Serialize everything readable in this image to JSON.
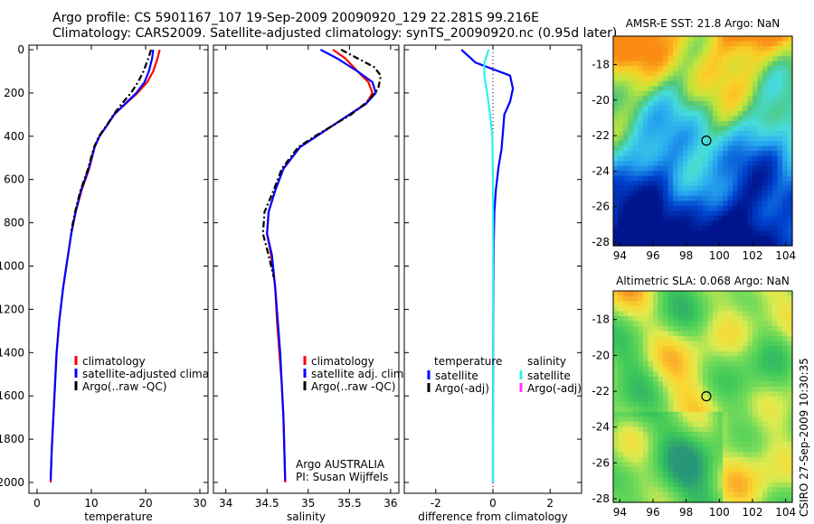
{
  "title": {
    "line1": "Argo profile: CS 5901167_107 19-Sep-2009 20090920_129 22.281S 99.216E",
    "line2": "Climatology: CARS2009. Satellite-adjusted climatology: synTS_20090920.nc (0.95d later)"
  },
  "side_label": "CSIRO 27-Sep-2009 10:30:35",
  "colors": {
    "climatology": "#ff0000",
    "satellite": "#0000ff",
    "argo": "#000000",
    "salinity_satellite": "#33eeee",
    "salinity_argo": "#ff33ff"
  },
  "chart_data": [
    {
      "type": "line",
      "name": "temperature-profile",
      "xlabel": "temperature",
      "xlim": [
        -1.5,
        31.5
      ],
      "ylim": [
        2000,
        0
      ],
      "yticks": [
        0,
        200,
        400,
        600,
        800,
        1000,
        1200,
        1400,
        1600,
        1800,
        2000
      ],
      "xticks": [
        0,
        10,
        20,
        30
      ],
      "legend": {
        "placement": "lower-right",
        "entries": [
          "climatology",
          "satellite-adjusted climatology",
          "Argo(..raw -QC)"
        ]
      },
      "series": [
        {
          "name": "climatology",
          "color": "#ff0000",
          "x": [
            22.6,
            22.2,
            21.4,
            20.3,
            18.5,
            16.3,
            14.2,
            12.9,
            11.5,
            10.6,
            9.6,
            8.2,
            7.1,
            6.3,
            5.7,
            4.8,
            4.1,
            3.6,
            3.3,
            3.0,
            2.7,
            2.5
          ],
          "y": [
            0,
            40,
            100,
            150,
            200,
            250,
            300,
            350,
            400,
            450,
            550,
            650,
            750,
            850,
            950,
            1100,
            1250,
            1400,
            1550,
            1700,
            1850,
            2000
          ]
        },
        {
          "name": "satellite-adjusted climatology",
          "color": "#0000ff",
          "x": [
            21.4,
            21.2,
            20.6,
            19.8,
            18.3,
            16.2,
            14.2,
            12.9,
            11.5,
            10.6,
            9.5,
            8.1,
            7.1,
            6.3,
            5.7,
            4.8,
            4.1,
            3.6,
            3.3,
            3.0,
            2.7,
            2.5
          ],
          "y": [
            0,
            40,
            100,
            150,
            200,
            250,
            300,
            350,
            400,
            450,
            550,
            650,
            750,
            850,
            950,
            1100,
            1250,
            1400,
            1550,
            1700,
            1850,
            1990
          ]
        },
        {
          "name": "Argo(..raw -QC)",
          "color": "#000000",
          "x": [
            21.0,
            20.5,
            19.6,
            18.6,
            17.3,
            15.6,
            14.1,
            12.8,
            11.4,
            10.5,
            9.4,
            8.0,
            7.0,
            6.2
          ],
          "y": [
            0,
            40,
            100,
            150,
            200,
            250,
            300,
            350,
            400,
            450,
            550,
            650,
            750,
            850
          ]
        }
      ]
    },
    {
      "type": "line",
      "name": "salinity-profile",
      "xlabel": "salinity",
      "xlim": [
        33.85,
        36.1
      ],
      "ylim": [
        2000,
        0
      ],
      "xticks": [
        34,
        34.5,
        35,
        35.5,
        36
      ],
      "legend": {
        "placement": "lower-right",
        "entries": [
          "climatology",
          "satellite adj. clim.",
          "Argo(..raw -QC)"
        ]
      },
      "annotation": {
        "line1": "Argo AUSTRALIA",
        "line2": "PI: Susan Wijffels"
      },
      "series": [
        {
          "name": "climatology",
          "color": "#ff0000",
          "x": [
            35.3,
            35.45,
            35.6,
            35.73,
            35.78,
            35.7,
            35.5,
            35.3,
            35.1,
            34.9,
            34.7,
            34.6,
            34.52,
            34.5,
            34.55,
            34.6,
            34.62,
            34.65,
            34.68,
            34.7,
            34.71,
            34.72
          ],
          "y": [
            0,
            40,
            100,
            150,
            200,
            250,
            300,
            350,
            400,
            450,
            550,
            650,
            750,
            850,
            950,
            1100,
            1250,
            1400,
            1550,
            1700,
            1850,
            2000
          ]
        },
        {
          "name": "satellite adj. clim.",
          "color": "#0000ff",
          "x": [
            35.15,
            35.35,
            35.6,
            35.78,
            35.82,
            35.7,
            35.5,
            35.3,
            35.1,
            34.9,
            34.7,
            34.6,
            34.52,
            34.5,
            34.56,
            34.6,
            34.63,
            34.66,
            34.68,
            34.7,
            34.71,
            34.72
          ],
          "y": [
            0,
            40,
            100,
            150,
            200,
            250,
            300,
            350,
            400,
            450,
            550,
            650,
            750,
            850,
            950,
            1100,
            1250,
            1400,
            1550,
            1700,
            1850,
            1990
          ]
        },
        {
          "name": "Argo(..raw -QC)",
          "color": "#000000",
          "x": [
            35.4,
            35.6,
            35.8,
            35.88,
            35.85,
            35.72,
            35.52,
            35.3,
            35.08,
            34.88,
            34.68,
            34.58,
            34.47,
            34.45,
            34.52,
            34.58
          ],
          "y": [
            0,
            40,
            80,
            120,
            180,
            240,
            300,
            350,
            400,
            450,
            550,
            650,
            750,
            850,
            950,
            1050
          ]
        }
      ]
    },
    {
      "type": "line",
      "name": "difference-profile",
      "xlabel": "difference from climatology",
      "xlim": [
        -3.1,
        3.1
      ],
      "ylim": [
        2000,
        0
      ],
      "xticks": [
        -2,
        0,
        2
      ],
      "legend": {
        "placement": "lower",
        "temperature_heading": "temperature",
        "salinity_heading": "salinity",
        "entries": [
          "satellite",
          "Argo(-adj)",
          "satellite",
          "Argo(-adj)"
        ]
      },
      "series": [
        {
          "name": "temperature satellite",
          "color": "#0000ff",
          "x": [
            -1.1,
            -0.6,
            0.6,
            0.7,
            0.6,
            0.4,
            0.35,
            0.3,
            0.2,
            0.1,
            0.05,
            0.03,
            0.02,
            0.01,
            0.0,
            0.0
          ],
          "y": [
            0,
            60,
            120,
            180,
            240,
            300,
            380,
            460,
            540,
            650,
            750,
            900,
            1100,
            1400,
            1700,
            2000
          ]
        },
        {
          "name": "salinity satellite",
          "color": "#33eeee",
          "x": [
            -0.15,
            -0.3,
            -0.3,
            -0.2,
            -0.1,
            -0.02,
            0.0,
            0.01,
            0.01,
            0.0
          ],
          "y": [
            0,
            60,
            120,
            200,
            300,
            400,
            600,
            900,
            1400,
            2000
          ]
        }
      ]
    },
    {
      "type": "heatmap",
      "name": "sst-map",
      "title": "AMSR-E SST: 21.8 Argo: NaN",
      "xlim": [
        93.6,
        104.4
      ],
      "ylim": [
        -28.2,
        -16.4
      ],
      "xticks": [
        94,
        96,
        98,
        100,
        102,
        104
      ],
      "yticks": [
        -18,
        -20,
        -22,
        -24,
        -26,
        -28
      ],
      "marker": {
        "lon": 99.216,
        "lat": -22.281
      }
    },
    {
      "type": "heatmap",
      "name": "sla-map",
      "title": "Altimetric SLA: 0.068 Argo: NaN",
      "xlim": [
        93.6,
        104.4
      ],
      "ylim": [
        -28.2,
        -16.4
      ],
      "xticks": [
        94,
        96,
        98,
        100,
        102,
        104
      ],
      "yticks": [
        -18,
        -20,
        -22,
        -24,
        -26,
        -28
      ],
      "marker": {
        "lon": 99.216,
        "lat": -22.281
      }
    }
  ]
}
